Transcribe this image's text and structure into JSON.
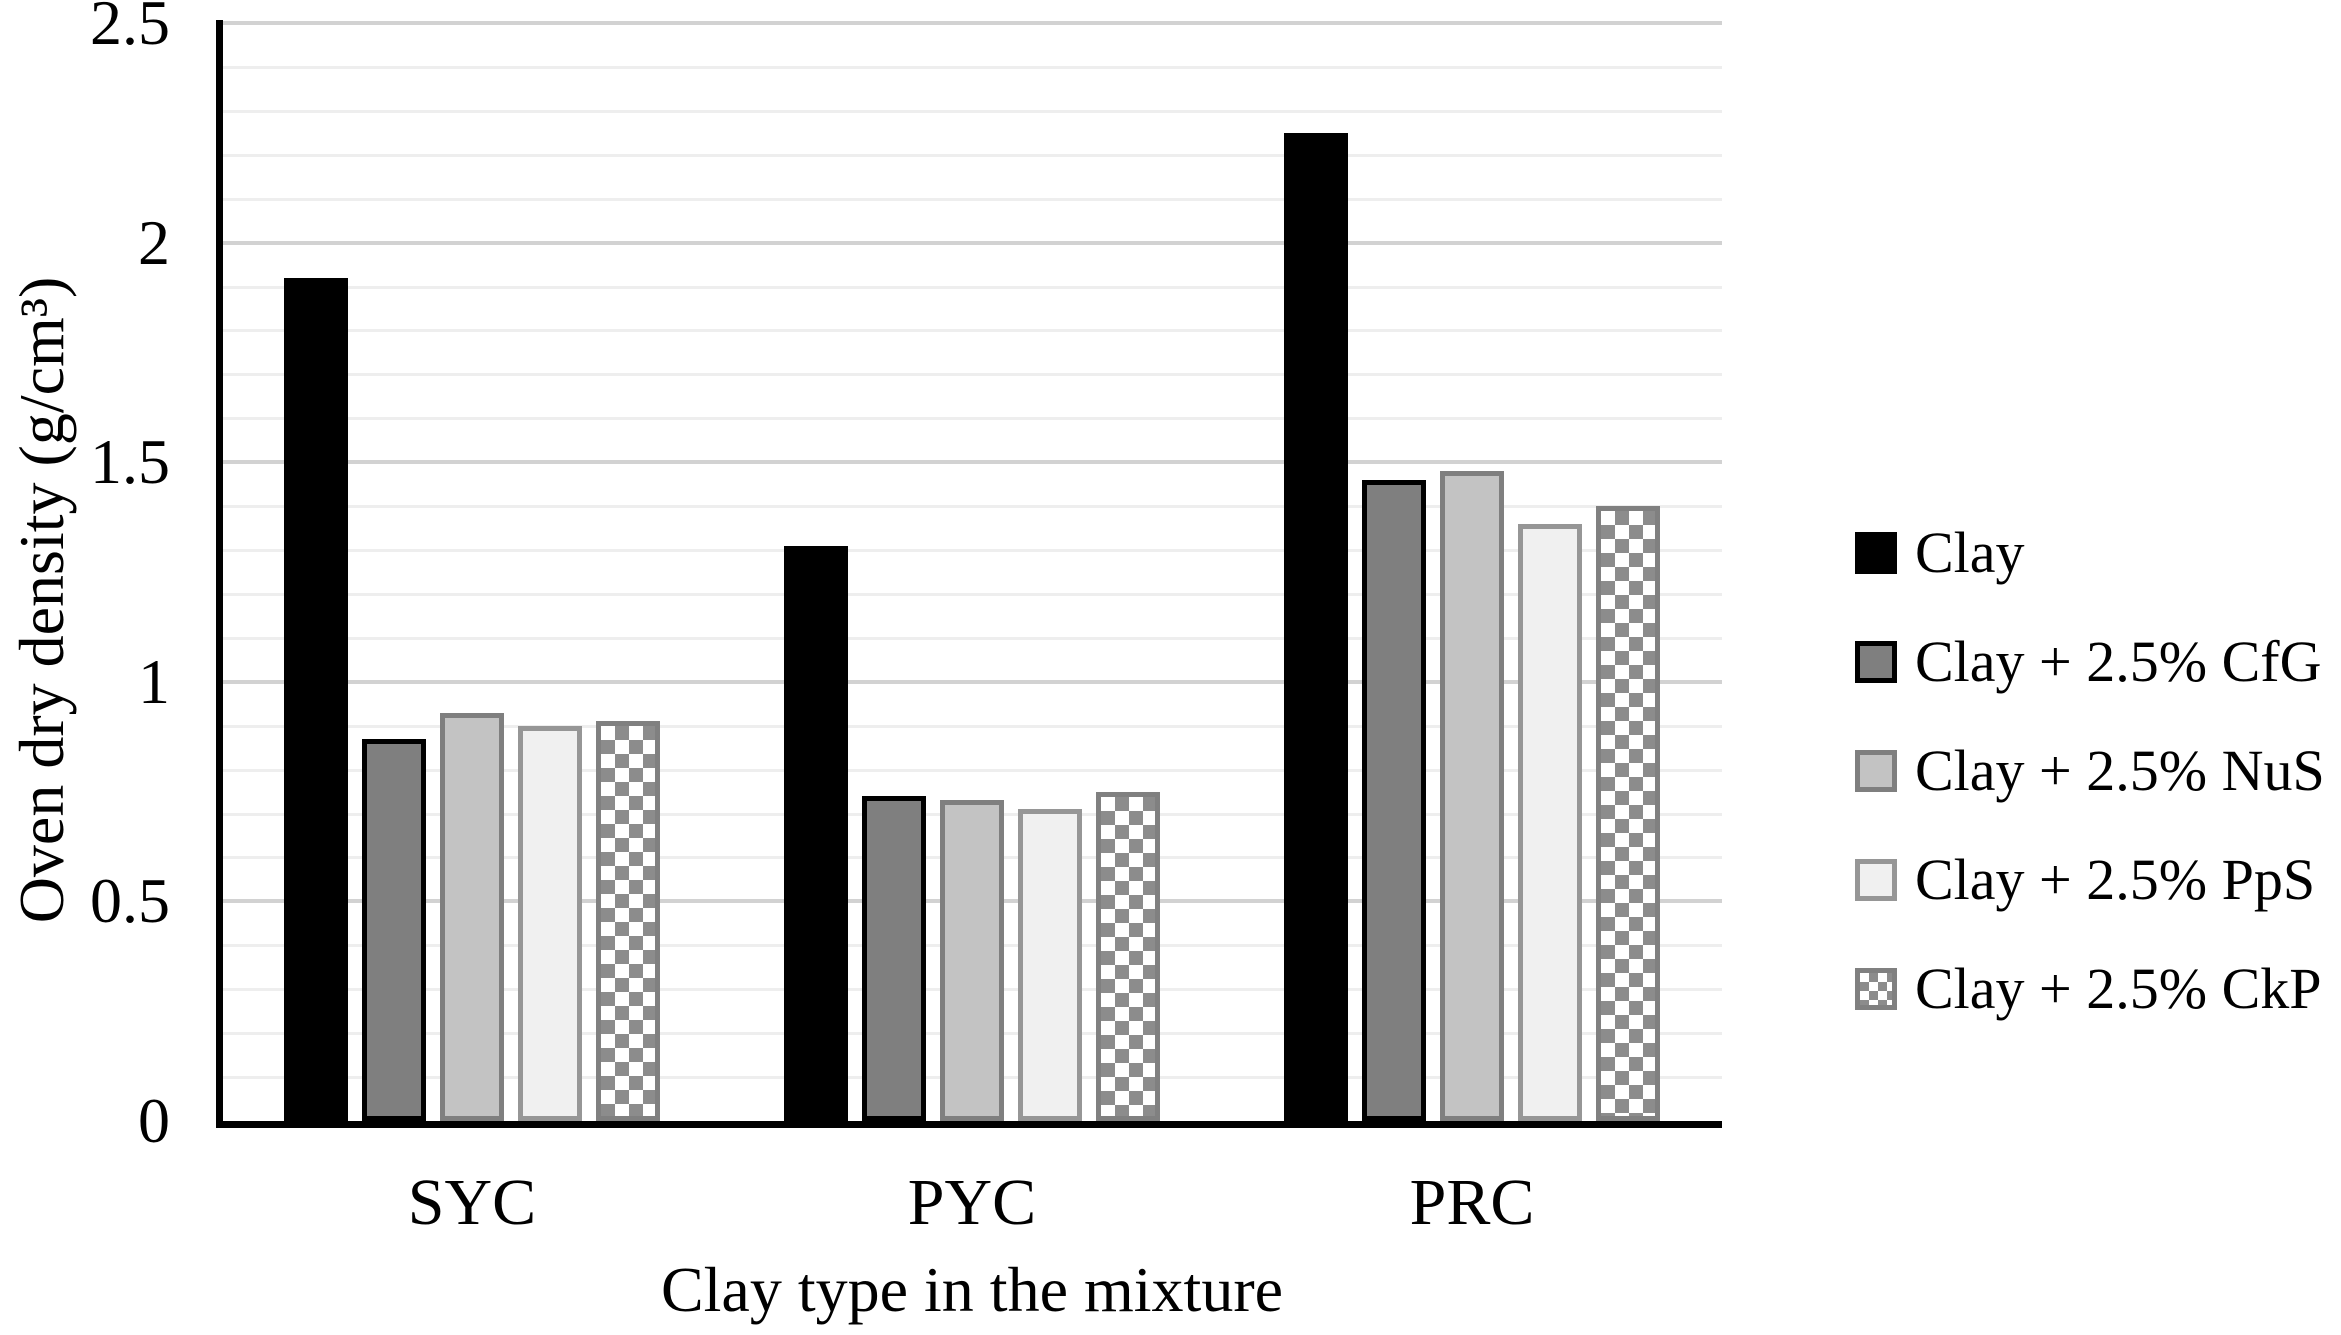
{
  "chart_data": {
    "type": "bar",
    "title": "",
    "xlabel": "Clay type in the mixture",
    "ylabel": "Oven dry density (g/cm³)",
    "categories": [
      "SYC",
      "PYC",
      "PRC"
    ],
    "series": [
      {
        "name": "Clay",
        "values": [
          1.92,
          1.31,
          2.25
        ]
      },
      {
        "name": "Clay + 2.5% CfG",
        "values": [
          0.87,
          0.74,
          1.46
        ]
      },
      {
        "name": "Clay + 2.5% NuS",
        "values": [
          0.93,
          0.73,
          1.48
        ]
      },
      {
        "name": "Clay + 2.5% PpS",
        "values": [
          0.9,
          0.71,
          1.36
        ]
      },
      {
        "name": "Clay + 2.5% CkP",
        "values": [
          0.91,
          0.75,
          1.4
        ]
      }
    ],
    "ylim": [
      0,
      2.5
    ],
    "y_ticks": [
      "0",
      "0.5",
      "1",
      "1.5",
      "2",
      "2.5"
    ],
    "y_major_unit": 0.5,
    "y_minor_unit": 0.1,
    "grid": "horizontal minor+major on, vertical off",
    "legend_position": "right",
    "colors": {
      "clay_fill": "#000000",
      "cfg_fill": "#7f7f7f",
      "nus_fill": "#c3c3c3",
      "pps_fill": "#f0f0f0",
      "ckp_pattern": "checkered #8c8c8c squares on white",
      "major_gridline": "#d2d2d2",
      "minor_gridline": "#eeeeee",
      "axis_line": "#000000"
    }
  },
  "legend": {
    "items": [
      "Clay",
      "Clay + 2.5% CfG",
      "Clay + 2.5% NuS",
      "Clay + 2.5% PpS",
      "Clay + 2.5% CkP"
    ]
  }
}
